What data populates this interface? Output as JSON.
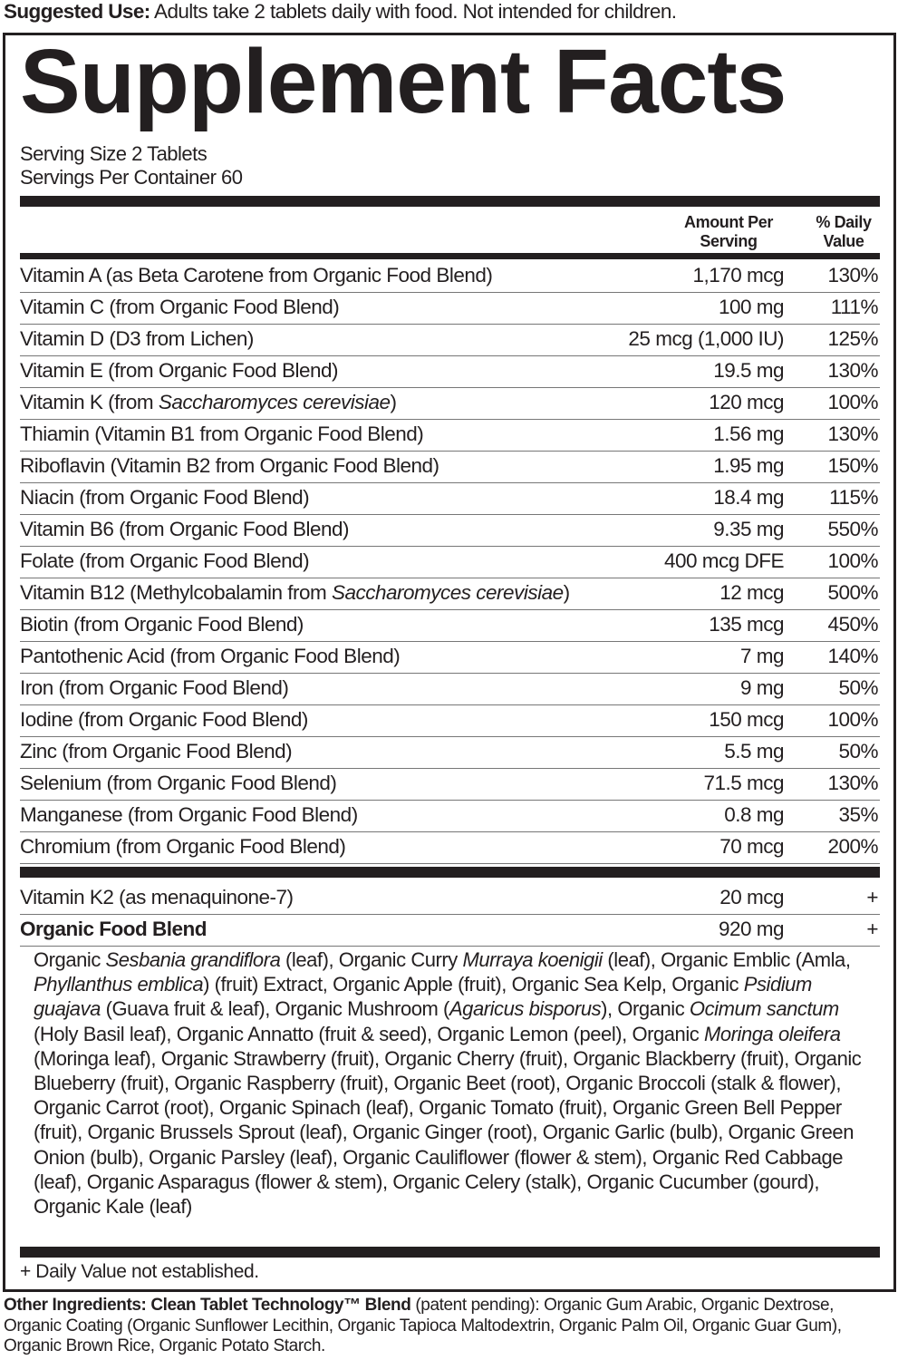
{
  "suggested_use": {
    "label": "Suggested Use:",
    "text": " Adults take 2 tablets daily with food. Not intended for children."
  },
  "title": "Supplement Facts",
  "serving_size": "Serving Size 2 Tablets",
  "servings_per_container": "Servings Per Container 60",
  "columns": {
    "amount": [
      "Amount Per",
      "Serving"
    ],
    "dv": [
      "% Daily",
      "Value"
    ]
  },
  "nutrients": [
    {
      "name": [
        {
          "t": "Vitamin A (as Beta Carotene from Organic Food Blend)"
        }
      ],
      "amount": "1,170 mcg",
      "dv": "130%"
    },
    {
      "name": [
        {
          "t": "Vitamin C (from Organic Food Blend)"
        }
      ],
      "amount": "100 mg",
      "dv": "111%"
    },
    {
      "name": [
        {
          "t": "Vitamin D (D3 from Lichen)"
        }
      ],
      "amount": "25 mcg (1,000 IU)",
      "dv": "125%"
    },
    {
      "name": [
        {
          "t": "Vitamin E (from Organic Food Blend)"
        }
      ],
      "amount": "19.5 mg",
      "dv": "130%"
    },
    {
      "name": [
        {
          "t": "Vitamin K (from "
        },
        {
          "t": "Saccharomyces cerevisiae",
          "i": true
        },
        {
          "t": ")"
        }
      ],
      "amount": "120 mcg",
      "dv": "100%"
    },
    {
      "name": [
        {
          "t": "Thiamin (Vitamin B1 from Organic Food Blend)"
        }
      ],
      "amount": "1.56 mg",
      "dv": "130%"
    },
    {
      "name": [
        {
          "t": "Riboflavin (Vitamin B2 from Organic Food Blend)"
        }
      ],
      "amount": "1.95 mg",
      "dv": "150%"
    },
    {
      "name": [
        {
          "t": "Niacin (from Organic Food Blend)"
        }
      ],
      "amount": "18.4 mg",
      "dv": "115%"
    },
    {
      "name": [
        {
          "t": "Vitamin B6 (from Organic Food Blend)"
        }
      ],
      "amount": "9.35 mg",
      "dv": "550%"
    },
    {
      "name": [
        {
          "t": "Folate (from Organic Food Blend)"
        }
      ],
      "amount": "400 mcg DFE",
      "dv": "100%"
    },
    {
      "name": [
        {
          "t": "Vitamin B12 (Methylcobalamin from "
        },
        {
          "t": "Saccharomyces cerevisiae",
          "i": true
        },
        {
          "t": ")"
        }
      ],
      "amount": "12 mcg",
      "dv": "500%"
    },
    {
      "name": [
        {
          "t": "Biotin (from Organic Food Blend)"
        }
      ],
      "amount": "135 mcg",
      "dv": "450%"
    },
    {
      "name": [
        {
          "t": "Pantothenic Acid (from Organic Food Blend)"
        }
      ],
      "amount": "7 mg",
      "dv": "140%"
    },
    {
      "name": [
        {
          "t": "Iron (from Organic Food Blend)"
        }
      ],
      "amount": "9 mg",
      "dv": "50%"
    },
    {
      "name": [
        {
          "t": "Iodine (from Organic Food Blend)"
        }
      ],
      "amount": "150 mcg",
      "dv": "100%"
    },
    {
      "name": [
        {
          "t": "Zinc (from Organic Food Blend)"
        }
      ],
      "amount": "5.5 mg",
      "dv": "50%"
    },
    {
      "name": [
        {
          "t": "Selenium (from Organic Food Blend)"
        }
      ],
      "amount": "71.5 mcg",
      "dv": "130%"
    },
    {
      "name": [
        {
          "t": "Manganese (from Organic Food Blend)"
        }
      ],
      "amount": "0.8 mg",
      "dv": "35%"
    },
    {
      "name": [
        {
          "t": "Chromium (from Organic Food Blend)"
        }
      ],
      "amount": "70 mcg",
      "dv": "200%"
    }
  ],
  "other_nutrients": [
    {
      "name": [
        {
          "t": "Vitamin K2 (as menaquinone-7)"
        }
      ],
      "amount": "20 mcg",
      "dv": "+"
    },
    {
      "name": [
        {
          "t": "Organic Food Blend",
          "b": true
        }
      ],
      "amount": "920 mg",
      "dv": "+"
    }
  ],
  "blend_ingredients": [
    {
      "t": "Organic "
    },
    {
      "t": "Sesbania grandiflora",
      "i": true
    },
    {
      "t": " (leaf), Organic Curry "
    },
    {
      "t": "Murraya koenigii",
      "i": true
    },
    {
      "t": " (leaf), Organic Emblic (Amla, "
    },
    {
      "t": "Phyllanthus emblica",
      "i": true
    },
    {
      "t": ") (fruit) Extract, Organic Apple (fruit), Organic Sea Kelp, Organic "
    },
    {
      "t": "Psidium guajava",
      "i": true
    },
    {
      "t": " (Guava fruit & leaf), Organic Mushroom ("
    },
    {
      "t": "Agaricus bisporus",
      "i": true
    },
    {
      "t": "), Organic "
    },
    {
      "t": "Ocimum sanctum",
      "i": true
    },
    {
      "t": " (Holy Basil leaf), Organic Annatto (fruit & seed), Organic Lemon (peel), Organic "
    },
    {
      "t": "Moringa oleifera",
      "i": true
    },
    {
      "t": " (Moringa leaf), Organic Strawberry (fruit), Organic Cherry (fruit), Organic Blackberry (fruit), Organic Blueberry (fruit), Organic Raspberry (fruit), Organic Beet (root), Organic Broccoli (stalk & flower), Organic Carrot (root), Organic Spinach (leaf), Organic Tomato (fruit), Organic Green Bell Pepper (fruit), Organic Brussels Sprout (leaf), Organic Ginger (root), Organic Garlic (bulb), Organic Green Onion (bulb), Organic Parsley (leaf), Organic Cauliflower (flower & stem), Organic Red Cabbage (leaf), Organic Asparagus (flower & stem), Organic Celery (stalk), Organic Cucumber (gourd), Organic Kale (leaf)"
    }
  ],
  "footnote": "+ Daily Value not established.",
  "other_ingredients": {
    "label": "Other Ingredients: Clean Tablet Technology™ Blend",
    "text": " (patent pending): Organic Gum Arabic, Organic Dextrose, Organic Coating (Organic Sunflower Lecithin, Organic Tapioca Maltodextrin, Organic Palm Oil, Organic Guar Gum), Organic Brown Rice, Organic Potato Starch."
  }
}
